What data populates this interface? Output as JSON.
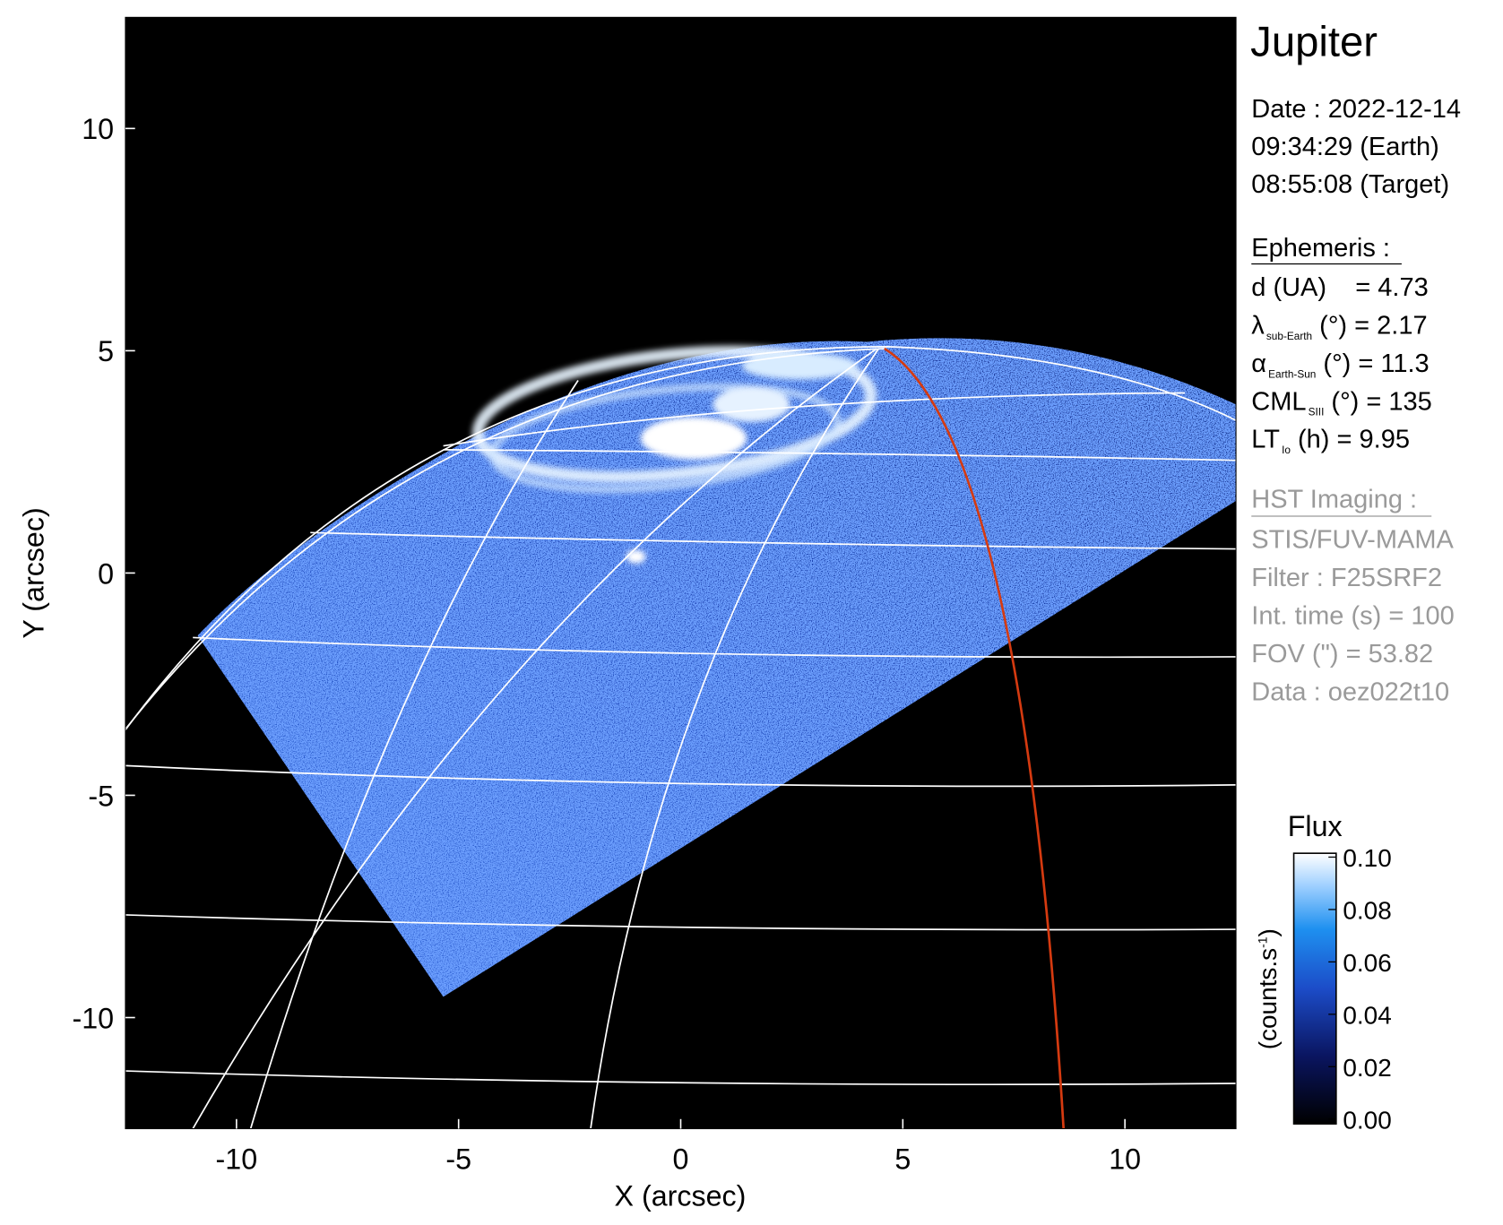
{
  "chart_data": {
    "type": "image",
    "title": "Jupiter",
    "x_label": "X (arcsec)",
    "y_label": "Y (arcsec)",
    "xlim": [
      -12.5,
      12.5
    ],
    "ylim": [
      -12.5,
      12.5
    ],
    "xticks": [
      -10,
      -5,
      0,
      5,
      10
    ],
    "yticks": [
      -10,
      -5,
      0,
      5,
      10
    ],
    "date_lines": [
      "Date : 2022-12-14",
      "09:34:29 (Earth)",
      "08:55:08 (Target)"
    ],
    "ephemeris_title": "Ephemeris :",
    "ephemeris": [
      {
        "label": "d (UA)",
        "text": "    = 4.73"
      },
      {
        "label": "λ",
        "sub": "sub-Earth",
        "text": " (°) = 2.17"
      },
      {
        "label": "α",
        "sub": "Earth-Sun",
        "text": " (°) = 11.3"
      },
      {
        "label": "CML",
        "sub": "SIII",
        "text": " (°) = 135"
      },
      {
        "label": "LT",
        "sub": "Io",
        "text": " (h) = 9.95"
      }
    ],
    "imaging_title": "HST Imaging :",
    "imaging": [
      "STIS/FUV-MAMA",
      "Filter : F25SRF2",
      "Int. time (s) = 100",
      "FOV (\") = 53.82",
      "Data : oez022t10"
    ],
    "colorbar": {
      "title": "Flux",
      "unit": [
        "(counts.s",
        "-1",
        ")"
      ],
      "clim": [
        0,
        0.1
      ],
      "ticks": [
        {
          "value": 0,
          "label": "0.00"
        },
        {
          "value": 0.02,
          "label": "0.02"
        },
        {
          "value": 0.04,
          "label": "0.04"
        },
        {
          "value": 0.06,
          "label": "0.06"
        },
        {
          "value": 0.08,
          "label": "0.08"
        },
        {
          "value": 0.1,
          "label": "0.10"
        }
      ]
    }
  }
}
